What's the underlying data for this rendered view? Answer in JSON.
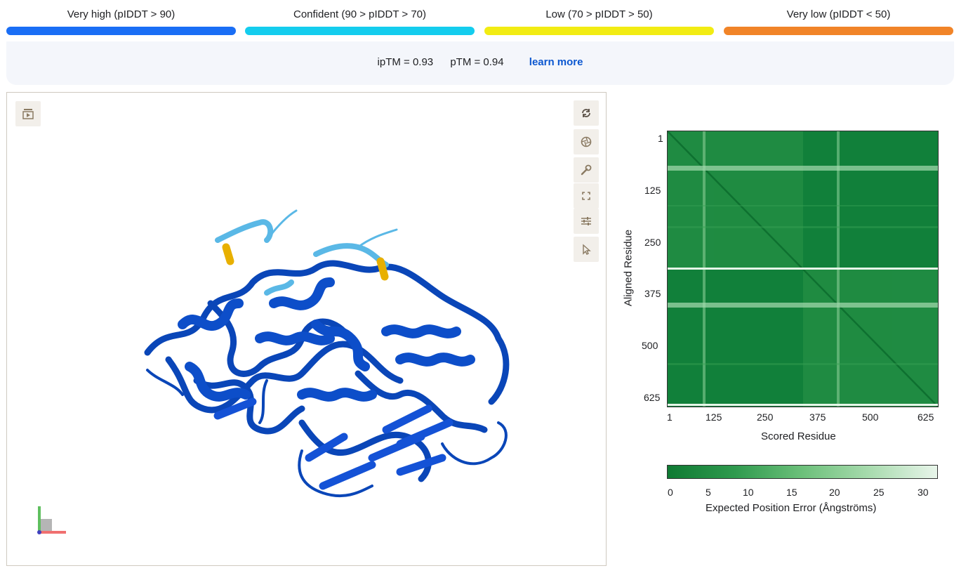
{
  "legend": {
    "items": [
      {
        "label": "Very high (pIDDT > 90)",
        "color": "#1a6ef5"
      },
      {
        "label": "Confident (90 > pIDDT > 70)",
        "color": "#14cdee"
      },
      {
        "label": "Low (70 > pIDDT > 50)",
        "color": "#f2ec13"
      },
      {
        "label": "Very low (pIDDT < 50)",
        "color": "#f18428"
      }
    ]
  },
  "scores": {
    "iptm": "ipTM = 0.93",
    "ptm": "pTM = 0.94",
    "learn_more": "learn more"
  },
  "viewer": {
    "tools_left": [
      "animation-icon"
    ],
    "tools_right": [
      "rotate-icon",
      "camera-icon",
      "wrench-icon",
      "fullscreen-icon",
      "settings-sliders-icon",
      "cursor-icon"
    ]
  },
  "pae": {
    "y_ticks": [
      "1",
      "125",
      "250",
      "375",
      "500",
      "625"
    ],
    "x_ticks": [
      "1",
      "125",
      "250",
      "375",
      "500",
      "625"
    ],
    "ylabel": "Aligned Residue",
    "xlabel": "Scored Residue",
    "colorbar_ticks": [
      "0",
      "5",
      "10",
      "15",
      "20",
      "25",
      "30"
    ],
    "colorbar_label": "Expected Position Error (Ångströms)"
  },
  "chart_data": {
    "type": "heatmap",
    "xlabel": "Scored Residue",
    "ylabel": "Aligned Residue",
    "xlim": [
      1,
      650
    ],
    "ylim": [
      1,
      650
    ],
    "x_ticks": [
      1,
      125,
      250,
      375,
      500,
      625
    ],
    "y_ticks": [
      1,
      125,
      250,
      375,
      500,
      625
    ],
    "colorbar": {
      "min": 0,
      "max": 31,
      "ticks": [
        0,
        5,
        10,
        15,
        20,
        25,
        30
      ],
      "label": "Expected Position Error (Ångströms)"
    },
    "colors": {
      "low": "#0f7a33",
      "high": "#e8f5ea"
    }
  }
}
